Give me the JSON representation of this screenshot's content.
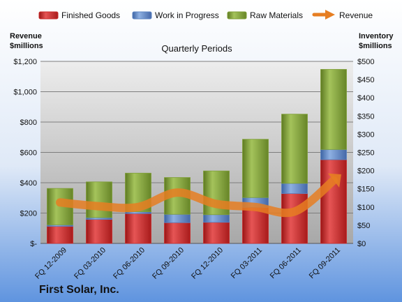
{
  "chart_data": {
    "type": "bar",
    "stacked": true,
    "title": "Quarterly Periods",
    "company": "First Solar, Inc.",
    "categories": [
      "FQ 12-2009",
      "FQ 03-2010",
      "FQ 06-2010",
      "FQ 09-2010",
      "FQ 12-2010",
      "FQ 03-2011",
      "FQ 06-2011",
      "FQ 09-2011"
    ],
    "series": [
      {
        "name": "Finished Goods",
        "color": "#cc2a2a",
        "values": [
          47,
          66,
          82,
          57,
          58,
          99,
          137,
          230
        ]
      },
      {
        "name": "Work in Progress",
        "color": "#5b84c4",
        "values": [
          4,
          5,
          5,
          23,
          21,
          27,
          28,
          28
        ]
      },
      {
        "name": "Raw Materials",
        "color": "#7f9f36",
        "values": [
          100,
          98,
          106,
          101,
          120,
          160,
          190,
          220
        ]
      }
    ],
    "line_series": {
      "name": "Revenue",
      "color": "#e67e22",
      "values": [
        270,
        245,
        240,
        335,
        260,
        240,
        210,
        415
      ]
    },
    "left_axis": {
      "label_line1": "Revenue",
      "label_line2": "$millions",
      "ticks": [
        "$-",
        "$200",
        "$400",
        "$600",
        "$800",
        "$1,000",
        "$1,200"
      ],
      "range": [
        0,
        1200
      ]
    },
    "right_axis": {
      "label_line1": "Inventory",
      "label_line2": "$millions",
      "ticks": [
        "$0",
        "$50",
        "$100",
        "$150",
        "$200",
        "$250",
        "$300",
        "$350",
        "$400",
        "$450",
        "$500"
      ],
      "range": [
        0,
        500
      ]
    },
    "grid": true,
    "legend_position": "top"
  }
}
